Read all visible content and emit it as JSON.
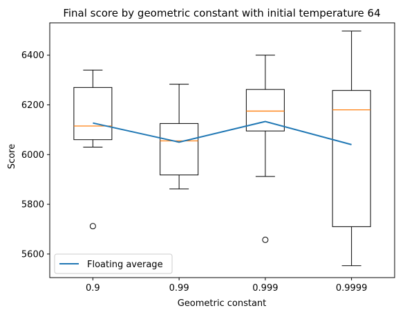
{
  "chart_data": {
    "type": "box",
    "title": "Final score by geometric constant with initial temperature 64",
    "xlabel": "Geometric constant",
    "ylabel": "Score",
    "categories": [
      "0.9",
      "0.99",
      "0.999",
      "0.9999"
    ],
    "ylim": [
      5505,
      6530
    ],
    "yticks": [
      5600,
      5800,
      6000,
      6200,
      6400
    ],
    "boxes": [
      {
        "category": "0.9",
        "whisker_low": 6030,
        "q1": 6060,
        "median": 6115,
        "q3": 6270,
        "whisker_high": 6340,
        "outliers": [
          5712
        ]
      },
      {
        "category": "0.99",
        "whisker_low": 5862,
        "q1": 5918,
        "median": 6055,
        "q3": 6125,
        "whisker_high": 6283,
        "outliers": []
      },
      {
        "category": "0.999",
        "whisker_low": 5912,
        "q1": 6095,
        "median": 6175,
        "q3": 6262,
        "whisker_high": 6400,
        "outliers": [
          5657
        ]
      },
      {
        "category": "0.9999",
        "whisker_low": 5553,
        "q1": 5710,
        "median": 6180,
        "q3": 6258,
        "whisker_high": 6497,
        "outliers": []
      }
    ],
    "series": [
      {
        "name": "Floating average",
        "type": "line",
        "values": [
          6127,
          6050,
          6133,
          6040
        ]
      }
    ],
    "legend": {
      "position": "lower-left"
    },
    "grid": false,
    "colors": {
      "box": "#000000",
      "median": "#ff7f0e",
      "average": "#1f77b4"
    }
  }
}
